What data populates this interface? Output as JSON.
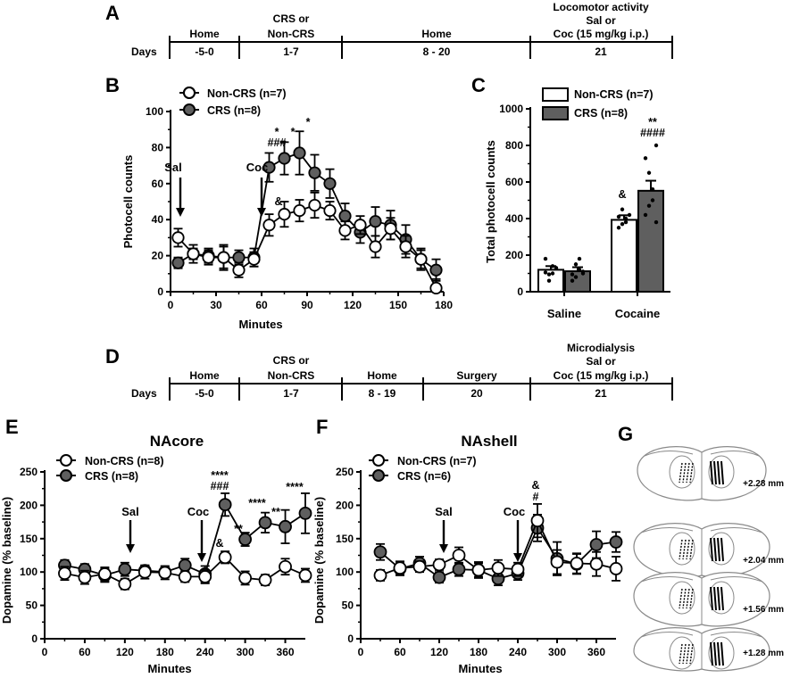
{
  "panels": {
    "A": "A",
    "B": "B",
    "C": "C",
    "D": "D",
    "E": "E",
    "F": "F",
    "G": "G"
  },
  "timelineA": {
    "rowLabel": "Days",
    "headers": [
      "Home",
      "CRS or",
      "Non-CRS",
      "Home",
      "Locomotor activity",
      "Sal or",
      "Coc (15 mg/kg i.p.)"
    ],
    "days": [
      "-5-0",
      "1-7",
      "8 - 20",
      "21"
    ]
  },
  "timelineD": {
    "rowLabel": "Days",
    "headers": [
      "Home",
      "CRS or",
      "Non-CRS",
      "Home",
      "Surgery",
      "Microdialysis",
      "Sal or",
      "Coc (15 mg/kg i.p.)"
    ],
    "days": [
      "-5-0",
      "1-7",
      "8 - 19",
      "20",
      "21"
    ]
  },
  "brain": {
    "levels": [
      "+2.28 mm",
      "+2.04 mm",
      "+1.56 mm",
      "+1.28 mm"
    ],
    "bregma": [
      2.28,
      2.04,
      1.56,
      1.28
    ]
  },
  "colors": {
    "crs": "#5f5f5f",
    "noncrs": "#ffffff",
    "ink": "#000000",
    "brainLine": "#8a8a8a"
  },
  "chart_data": [
    {
      "id": "B",
      "type": "line",
      "title": "",
      "xlabel": "Minutes",
      "ylabel": "Photocell counts",
      "xlim": [
        0,
        180
      ],
      "ylim": [
        0,
        100
      ],
      "xticks": [
        "0",
        "30",
        "60",
        "90",
        "120",
        "150",
        "180"
      ],
      "yticks": [
        "0",
        "20",
        "40",
        "60",
        "80",
        "100"
      ],
      "x": [
        5,
        15,
        25,
        35,
        45,
        55,
        65,
        75,
        85,
        95,
        105,
        115,
        125,
        135,
        145,
        155,
        165,
        175
      ],
      "series": [
        {
          "name": "Non-CRS (n=7)",
          "values": [
            30,
            21,
            19,
            19,
            12,
            18,
            37,
            43,
            45,
            48,
            45,
            34,
            37,
            25,
            35,
            25,
            18,
            2
          ],
          "errors": [
            5,
            3,
            4,
            6,
            4,
            4,
            6,
            7,
            6,
            7,
            5,
            5,
            5,
            6,
            6,
            6,
            5,
            5
          ]
        },
        {
          "name": "CRS (n=8)",
          "values": [
            16,
            21,
            20,
            19,
            19,
            19,
            69,
            74,
            77,
            66,
            60,
            42,
            33,
            39,
            37,
            29,
            18,
            12
          ],
          "errors": [
            3,
            5,
            4,
            7,
            4,
            5,
            8,
            9,
            12,
            10,
            8,
            7,
            6,
            8,
            8,
            8,
            6,
            6
          ]
        }
      ],
      "annotations": [
        {
          "text": "Sal",
          "kind": "arrow",
          "x": 5
        },
        {
          "text": "Coc",
          "kind": "arrow",
          "x": 50
        },
        {
          "text": "*",
          "x": 65
        },
        {
          "text": "###",
          "x": 65
        },
        {
          "text": "*",
          "x": 75
        },
        {
          "text": "*",
          "x": 85
        },
        {
          "text": "&",
          "x": 65
        }
      ]
    },
    {
      "id": "C",
      "type": "bar",
      "title": "",
      "xlabel": "",
      "ylabel": "Total photocell counts",
      "ylim": [
        0,
        1000
      ],
      "yticks": [
        "0",
        "200",
        "400",
        "600",
        "800",
        "1000"
      ],
      "categories": [
        "Saline",
        "Cocaine"
      ],
      "series": [
        {
          "name": "Non-CRS (n=7)",
          "values": [
            120,
            393
          ],
          "errors": [
            20,
            25
          ]
        },
        {
          "name": "CRS (n=8)",
          "values": [
            112,
            552
          ],
          "errors": [
            22,
            55
          ]
        }
      ],
      "points": [
        [
          [
            180,
            95,
            100,
            130,
            105,
            60,
            140
          ],
          [
            410,
            450,
            380,
            420,
            350,
            370,
            400
          ]
        ],
        [
          [
            60,
            80,
            180,
            100,
            95,
            150,
            120,
            110
          ],
          [
            420,
            470,
            560,
            800,
            730,
            650,
            500,
            380
          ]
        ]
      ],
      "annotations": [
        {
          "text": "&"
        },
        {
          "text": "**"
        },
        {
          "text": "####"
        }
      ]
    },
    {
      "id": "E",
      "type": "line",
      "title": "NAcore",
      "xlabel": "Minutes",
      "ylabel": "Dopamine (% baseline)",
      "xlim": [
        0,
        390
      ],
      "ylim": [
        0,
        250
      ],
      "xticks": [
        "0",
        "60",
        "120",
        "180",
        "240",
        "300",
        "360"
      ],
      "yticks": [
        "0",
        "50",
        "100",
        "150",
        "200",
        "250"
      ],
      "x": [
        30,
        60,
        90,
        120,
        150,
        180,
        210,
        240,
        270,
        300,
        330,
        360,
        390
      ],
      "series": [
        {
          "name": "Non-CRS (n=8)",
          "values": [
            98,
            92,
            97,
            82,
            100,
            99,
            93,
            93,
            122,
            91,
            88,
            108,
            95
          ],
          "errors": [
            10,
            10,
            10,
            8,
            10,
            10,
            8,
            10,
            9,
            10,
            8,
            12,
            10
          ]
        },
        {
          "name": "CRS (n=8)",
          "values": [
            110,
            104,
            95,
            104,
            102,
            100,
            110,
            97,
            201,
            149,
            174,
            168,
            188
          ],
          "errors": [
            8,
            8,
            10,
            10,
            8,
            8,
            10,
            12,
            17,
            10,
            15,
            25,
            30
          ]
        }
      ],
      "annotations": [
        {
          "text": "Sal",
          "kind": "arrow",
          "x": 125
        },
        {
          "text": "Coc",
          "kind": "arrow",
          "x": 247
        },
        {
          "text": "****",
          "x": 270
        },
        {
          "text": "###",
          "x": 270
        },
        {
          "text": "&",
          "x": 270
        },
        {
          "text": "**",
          "x": 300
        },
        {
          "text": "****",
          "x": 330
        },
        {
          "text": "**",
          "x": 360
        },
        {
          "text": "****",
          "x": 390
        }
      ]
    },
    {
      "id": "F",
      "type": "line",
      "title": "NAshell",
      "xlabel": "Minutes",
      "ylabel": "Dopamine (% baseline)",
      "xlim": [
        0,
        390
      ],
      "ylim": [
        0,
        250
      ],
      "xticks": [
        "0",
        "60",
        "120",
        "180",
        "240",
        "300",
        "360"
      ],
      "yticks": [
        "0",
        "50",
        "100",
        "150",
        "200",
        "250"
      ],
      "x": [
        30,
        60,
        90,
        120,
        150,
        180,
        210,
        240,
        270,
        300,
        330,
        360,
        390
      ],
      "series": [
        {
          "name": "Non-CRS (n=7)",
          "values": [
            95,
            106,
            108,
            111,
            125,
            103,
            106,
            104,
            177,
            115,
            113,
            112,
            105
          ],
          "errors": [
            8,
            10,
            8,
            8,
            12,
            10,
            12,
            10,
            25,
            18,
            15,
            18,
            18
          ]
        },
        {
          "name": "CRS (n=6)",
          "values": [
            130,
            105,
            113,
            92,
            104,
            103,
            90,
            98,
            166,
            120,
            112,
            141,
            145
          ],
          "errors": [
            12,
            10,
            10,
            8,
            10,
            12,
            10,
            10,
            20,
            25,
            15,
            20,
            15
          ]
        }
      ],
      "annotations": [
        {
          "text": "Sal",
          "kind": "arrow",
          "x": 125
        },
        {
          "text": "Coc",
          "kind": "arrow",
          "x": 247
        },
        {
          "text": "&",
          "x": 270
        },
        {
          "text": "#",
          "x": 270
        }
      ]
    }
  ]
}
